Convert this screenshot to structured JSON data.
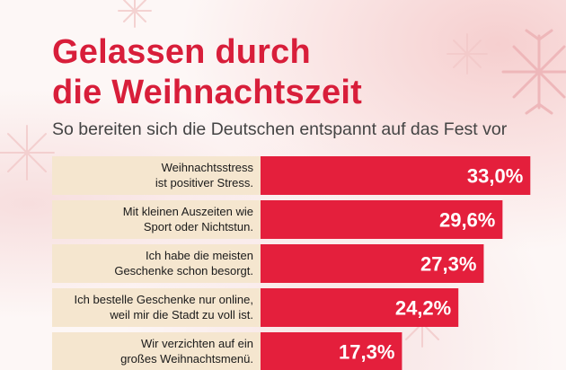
{
  "title_line1": "Gelassen durch",
  "title_line2": "die Weihnachtszeit",
  "subtitle": "So bereiten sich die Deutschen entspannt auf das Fest vor",
  "colors": {
    "accent": "#d81e3a",
    "bar": "#e41f3c",
    "label_bg": "#f5e6cf"
  },
  "chart_data": {
    "type": "bar",
    "orientation": "horizontal",
    "categories": [
      [
        "Weihnachtsstress",
        "ist positiver Stress."
      ],
      [
        "Mit kleinen Auszeiten wie",
        "Sport oder Nichtstun."
      ],
      [
        "Ich habe die meisten",
        "Geschenke schon besorgt."
      ],
      [
        "Ich bestelle Geschenke nur online,",
        "weil mir die Stadt zu voll ist."
      ],
      [
        "Wir verzichten auf ein",
        "großes Weihnachtsmenü."
      ]
    ],
    "values": [
      33.0,
      29.6,
      27.3,
      24.2,
      17.3
    ],
    "value_labels": [
      "33,0%",
      "29,6%",
      "27,3%",
      "24,2%",
      "17,3%"
    ],
    "unit": "%"
  }
}
